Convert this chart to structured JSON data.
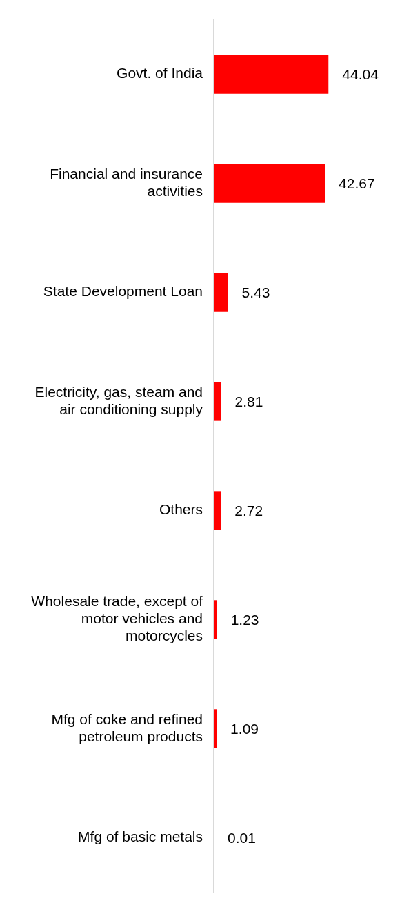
{
  "chart_data": {
    "type": "bar",
    "orientation": "horizontal",
    "categories": [
      "Govt. of India",
      "Financial and insurance activities",
      "State Development Loan",
      "Electricity, gas, steam and air conditioning supply",
      "Others",
      "Wholesale trade, except of motor vehicles and motorcycles",
      "Mfg of coke and refined petroleum products",
      "Mfg of basic metals"
    ],
    "values": [
      44.04,
      42.67,
      5.43,
      2.81,
      2.72,
      1.23,
      1.09,
      0.01
    ],
    "color": "#ff0000",
    "data_labels": true,
    "legend": false,
    "tick_labels": "y"
  }
}
